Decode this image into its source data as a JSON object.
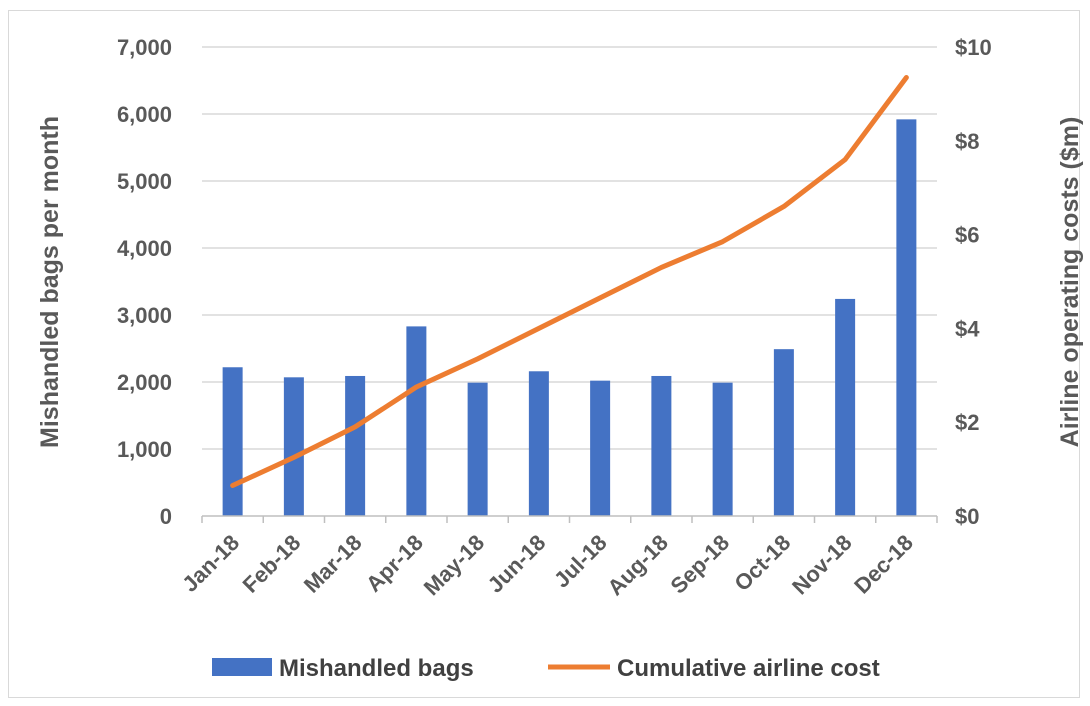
{
  "chart_data": {
    "type": "bar+line",
    "categories": [
      "Jan-18",
      "Feb-18",
      "Mar-18",
      "Apr-18",
      "May-18",
      "Jun-18",
      "Jul-18",
      "Aug-18",
      "Sep-18",
      "Oct-18",
      "Nov-18",
      "Dec-18"
    ],
    "series": [
      {
        "name": "Mishandled bags",
        "type": "bar",
        "axis": "left",
        "color": "#4472c4",
        "values": [
          2220,
          2070,
          2090,
          2830,
          1990,
          2160,
          2020,
          2090,
          1990,
          2490,
          3240,
          5920
        ]
      },
      {
        "name": "Cumulative airline cost",
        "type": "line",
        "axis": "right",
        "color": "#ed7d31",
        "values": [
          0.65,
          1.25,
          1.9,
          2.75,
          3.35,
          4.0,
          4.65,
          5.3,
          5.85,
          6.6,
          7.6,
          9.35
        ]
      }
    ],
    "y_left": {
      "label": "Mishandled bags per month",
      "ylim": [
        0,
        7000
      ],
      "ticks": [
        0,
        1000,
        2000,
        3000,
        4000,
        5000,
        6000,
        7000
      ],
      "tick_labels": [
        "0",
        "1,000",
        "2,000",
        "3,000",
        "4,000",
        "5,000",
        "6,000",
        "7,000"
      ]
    },
    "y_right": {
      "label": "Airline operating costs ($m)",
      "ylim": [
        0,
        10
      ],
      "ticks": [
        0,
        2,
        4,
        6,
        8,
        10
      ],
      "tick_labels": [
        "$0",
        "$2",
        "$4",
        "$6",
        "$8",
        "$10"
      ]
    },
    "grid": true,
    "legend_position": "bottom",
    "gridline_color": "#d9d9d9"
  }
}
